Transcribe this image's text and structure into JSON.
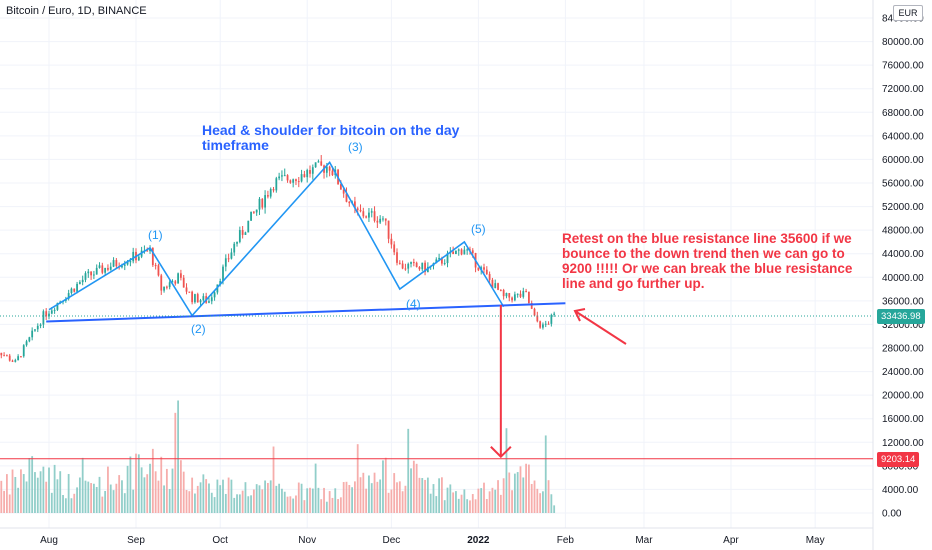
{
  "header": {
    "title": "Bitcoin / Euro, 1D, BINANCE",
    "currency": "EUR"
  },
  "annotations": {
    "pattern_title": "Head & shoulder for bitcoin on the day timeframe",
    "comment": "Retest on the blue resistance line 35600 if we bounce to the down trend then we can go to 9200 !!!!!  Or we can break the blue resistance line and go further up."
  },
  "pattern_points": [
    "(1)",
    "(2)",
    "(3)",
    "(4)",
    "(5)"
  ],
  "price_tags": {
    "last": "33436.98",
    "target": "9203.14"
  },
  "colors": {
    "up": "#26a69a",
    "down": "#ef5350",
    "pattern": "#2196f3",
    "neckline": "#2962ff",
    "annotation": "#f23645"
  },
  "chart_data": {
    "type": "candlestick",
    "title": "Bitcoin / Euro, 1D, BINANCE",
    "y_ticks": [
      "84000.00",
      "80000.00",
      "76000.00",
      "72000.00",
      "68000.00",
      "64000.00",
      "60000.00",
      "56000.00",
      "52000.00",
      "48000.00",
      "44000.00",
      "40000.00",
      "36000.00",
      "32000.00",
      "28000.00",
      "24000.00",
      "20000.00",
      "16000.00",
      "12000.00",
      "8000.00",
      "4000.00",
      "0.00"
    ],
    "x_ticks": [
      "Aug",
      "Sep",
      "Oct",
      "Nov",
      "Dec",
      "2022",
      "Feb",
      "Mar",
      "Apr",
      "May"
    ],
    "ylim": [
      0,
      86000
    ],
    "price_path": [
      {
        "date": "2021-07-11",
        "price": 28500
      },
      {
        "date": "2021-07-20",
        "price": 25500
      },
      {
        "date": "2021-07-30",
        "price": 33500
      },
      {
        "date": "2021-08-14",
        "price": 40000
      },
      {
        "date": "2021-08-23",
        "price": 42000
      },
      {
        "date": "2021-09-06",
        "price": 44500
      },
      {
        "date": "2021-09-10",
        "price": 38000
      },
      {
        "date": "2021-09-16",
        "price": 40000
      },
      {
        "date": "2021-09-21",
        "price": 36500
      },
      {
        "date": "2021-09-27",
        "price": 36000
      },
      {
        "date": "2021-10-06",
        "price": 45500
      },
      {
        "date": "2021-10-20",
        "price": 56000
      },
      {
        "date": "2021-11-09",
        "price": 59000
      },
      {
        "date": "2021-11-18",
        "price": 51000
      },
      {
        "date": "2021-11-28",
        "price": 50000
      },
      {
        "date": "2021-12-04",
        "price": 42000
      },
      {
        "date": "2021-12-14",
        "price": 41500
      },
      {
        "date": "2021-12-27",
        "price": 45000
      },
      {
        "date": "2022-01-05",
        "price": 39500
      },
      {
        "date": "2022-01-10",
        "price": 36500
      },
      {
        "date": "2022-01-18",
        "price": 37000
      },
      {
        "date": "2022-01-21",
        "price": 33000
      },
      {
        "date": "2022-01-24",
        "price": 31500
      },
      {
        "date": "2022-01-28",
        "price": 33437
      }
    ],
    "volume_profile": [
      {
        "date": "2021-07-11",
        "volume": 2500
      },
      {
        "date": "2021-07-27",
        "volume": 9000
      },
      {
        "date": "2021-08-10",
        "volume": 4500
      },
      {
        "date": "2021-09-07",
        "volume": 8500
      },
      {
        "date": "2021-10-01",
        "volume": 5000
      },
      {
        "date": "2021-11-10",
        "volume": 3500
      },
      {
        "date": "2021-12-04",
        "volume": 8000
      },
      {
        "date": "2021-12-28",
        "volume": 3000
      },
      {
        "date": "2022-01-10",
        "volume": 5000
      },
      {
        "date": "2022-01-22",
        "volume": 7500
      },
      {
        "date": "2022-01-28",
        "volume": 2500
      }
    ],
    "pattern": [
      {
        "label": "(1)",
        "date": "2021-09-06",
        "price": 45000
      },
      {
        "label": "(2)",
        "date": "2021-09-21",
        "price": 33500
      },
      {
        "label": "(3)",
        "date": "2021-11-09",
        "price": 59500
      },
      {
        "label": "(4)",
        "date": "2021-12-04",
        "price": 38000
      },
      {
        "label": "(5)",
        "date": "2021-12-27",
        "price": 46000
      }
    ],
    "neckline": [
      {
        "date": "2021-07-31",
        "price": 32500
      },
      {
        "date": "2022-02-01",
        "price": 35600
      }
    ],
    "target_line": 9203.14,
    "last_price": 33436.98
  }
}
